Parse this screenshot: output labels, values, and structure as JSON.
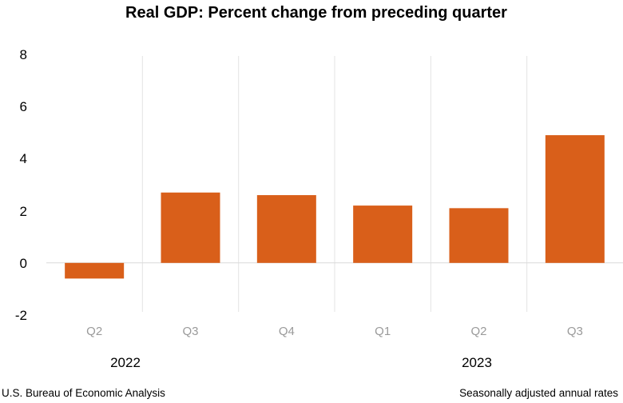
{
  "chart_data": {
    "type": "bar",
    "title": "Real GDP:  Percent change from preceding quarter",
    "categories": [
      "Q2",
      "Q3",
      "Q4",
      "Q1",
      "Q2",
      "Q3"
    ],
    "values": [
      -0.6,
      2.7,
      2.6,
      2.2,
      2.1,
      4.9
    ],
    "groups": [
      {
        "label": "2022",
        "categories": [
          "Q2",
          "Q3",
          "Q4"
        ]
      },
      {
        "label": "2023",
        "categories": [
          "Q1",
          "Q2",
          "Q3"
        ]
      }
    ],
    "yticks": [
      "8",
      "6",
      "4",
      "2",
      "0",
      "-2"
    ],
    "ylim": [
      -2,
      8
    ],
    "xlabel": "",
    "ylabel": "",
    "grid": false,
    "bar_color": "#d95f1a"
  },
  "footer": {
    "source": "U.S. Bureau of Economic Analysis",
    "note": "Seasonally adjusted annual rates"
  }
}
